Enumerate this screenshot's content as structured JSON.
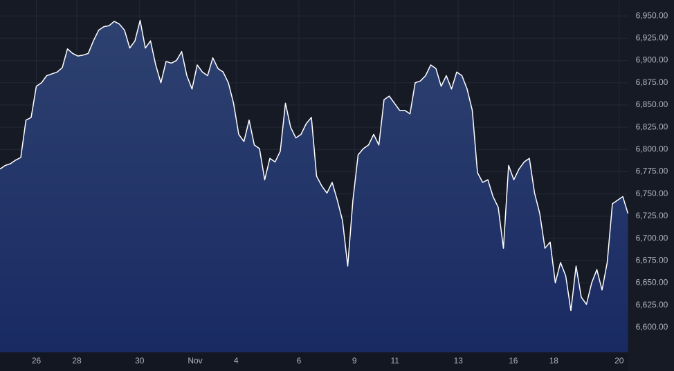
{
  "chart_data": {
    "type": "area",
    "color": "#ffffff",
    "grid": true,
    "x": [
      0,
      1,
      2,
      3,
      4,
      5,
      6,
      7,
      8,
      9,
      10,
      11,
      12,
      13,
      14,
      15,
      16,
      17,
      18,
      19,
      20,
      21,
      22,
      23,
      24,
      25,
      26,
      27,
      28,
      29,
      30,
      31,
      32,
      33,
      34,
      35,
      36,
      37,
      38,
      39,
      40,
      41,
      42,
      43,
      44,
      45,
      46,
      47,
      48,
      49,
      50,
      51,
      52,
      53,
      54,
      55,
      56,
      57,
      58,
      59,
      60,
      61,
      62,
      63,
      64,
      65,
      66,
      67,
      68,
      69,
      70,
      71,
      72,
      73,
      74,
      75,
      76,
      77,
      78,
      79,
      80,
      81,
      82,
      83,
      84,
      85,
      86,
      87,
      88,
      89,
      90,
      91,
      92,
      93,
      94,
      95,
      96,
      97,
      98,
      99,
      100,
      101,
      102,
      103,
      104,
      105,
      106,
      107,
      108,
      109,
      110,
      111,
      112,
      113,
      114,
      115,
      116,
      117,
      118,
      119,
      120,
      121
    ],
    "values": [
      6778,
      6782,
      6784,
      6788,
      6791,
      6833,
      6836,
      6871,
      6875,
      6883,
      6885,
      6887,
      6892,
      6913,
      6908,
      6905,
      6906,
      6908,
      6922,
      6934,
      6938,
      6939,
      6944,
      6941,
      6934,
      6914,
      6922,
      6945,
      6914,
      6922,
      6895,
      6875,
      6899,
      6897,
      6900,
      6910,
      6883,
      6868,
      6895,
      6887,
      6883,
      6903,
      6891,
      6887,
      6875,
      6852,
      6817,
      6809,
      6833,
      6805,
      6801,
      6766,
      6790,
      6786,
      6798,
      6852,
      6825,
      6813,
      6817,
      6829,
      6836,
      6770,
      6759,
      6751,
      6763,
      6743,
      6720,
      6669,
      6743,
      6794,
      6801,
      6805,
      6817,
      6805,
      6856,
      6860,
      6852,
      6844,
      6844,
      6840,
      6875,
      6877,
      6883,
      6895,
      6891,
      6871,
      6883,
      6868,
      6887,
      6883,
      6868,
      6844,
      6774,
      6763,
      6766,
      6747,
      6735,
      6689,
      6782,
      6766,
      6778,
      6786,
      6790,
      6751,
      6728,
      6689,
      6696,
      6650,
      6673,
      6658,
      6619,
      6669,
      6634,
      6626,
      6650,
      6665,
      6642,
      6673,
      6739,
      6743,
      6747,
      6728
    ],
    "xlim": [
      0,
      121
    ],
    "xticks": [
      {
        "value": 7,
        "label": "26"
      },
      {
        "value": 14.8,
        "label": "28"
      },
      {
        "value": 26.9,
        "label": "30"
      },
      {
        "value": 37.6,
        "label": "Nov"
      },
      {
        "value": 45.5,
        "label": "4"
      },
      {
        "value": 57.6,
        "label": "6"
      },
      {
        "value": 68.3,
        "label": "9"
      },
      {
        "value": 76.1,
        "label": "11"
      },
      {
        "value": 88.3,
        "label": "13"
      },
      {
        "value": 98.9,
        "label": "16"
      },
      {
        "value": 106.7,
        "label": "18"
      },
      {
        "value": 119.3,
        "label": "20"
      }
    ],
    "ylim": [
      6572,
      6968
    ],
    "yticks": [
      {
        "value": 6600,
        "label": "6,600.00"
      },
      {
        "value": 6625,
        "label": "6,625.00"
      },
      {
        "value": 6650,
        "label": "6,650.00"
      },
      {
        "value": 6675,
        "label": "6,675.00"
      },
      {
        "value": 6700,
        "label": "6,700.00"
      },
      {
        "value": 6725,
        "label": "6,725.00"
      },
      {
        "value": 6750,
        "label": "6,750.00"
      },
      {
        "value": 6775,
        "label": "6,775.00"
      },
      {
        "value": 6800,
        "label": "6,800.00"
      },
      {
        "value": 6825,
        "label": "6,825.00"
      },
      {
        "value": 6850,
        "label": "6,850.00"
      },
      {
        "value": 6875,
        "label": "6,875.00"
      },
      {
        "value": 6900,
        "label": "6,900.00"
      },
      {
        "value": 6925,
        "label": "6,925.00"
      },
      {
        "value": 6950,
        "label": "6,950.00"
      }
    ]
  }
}
